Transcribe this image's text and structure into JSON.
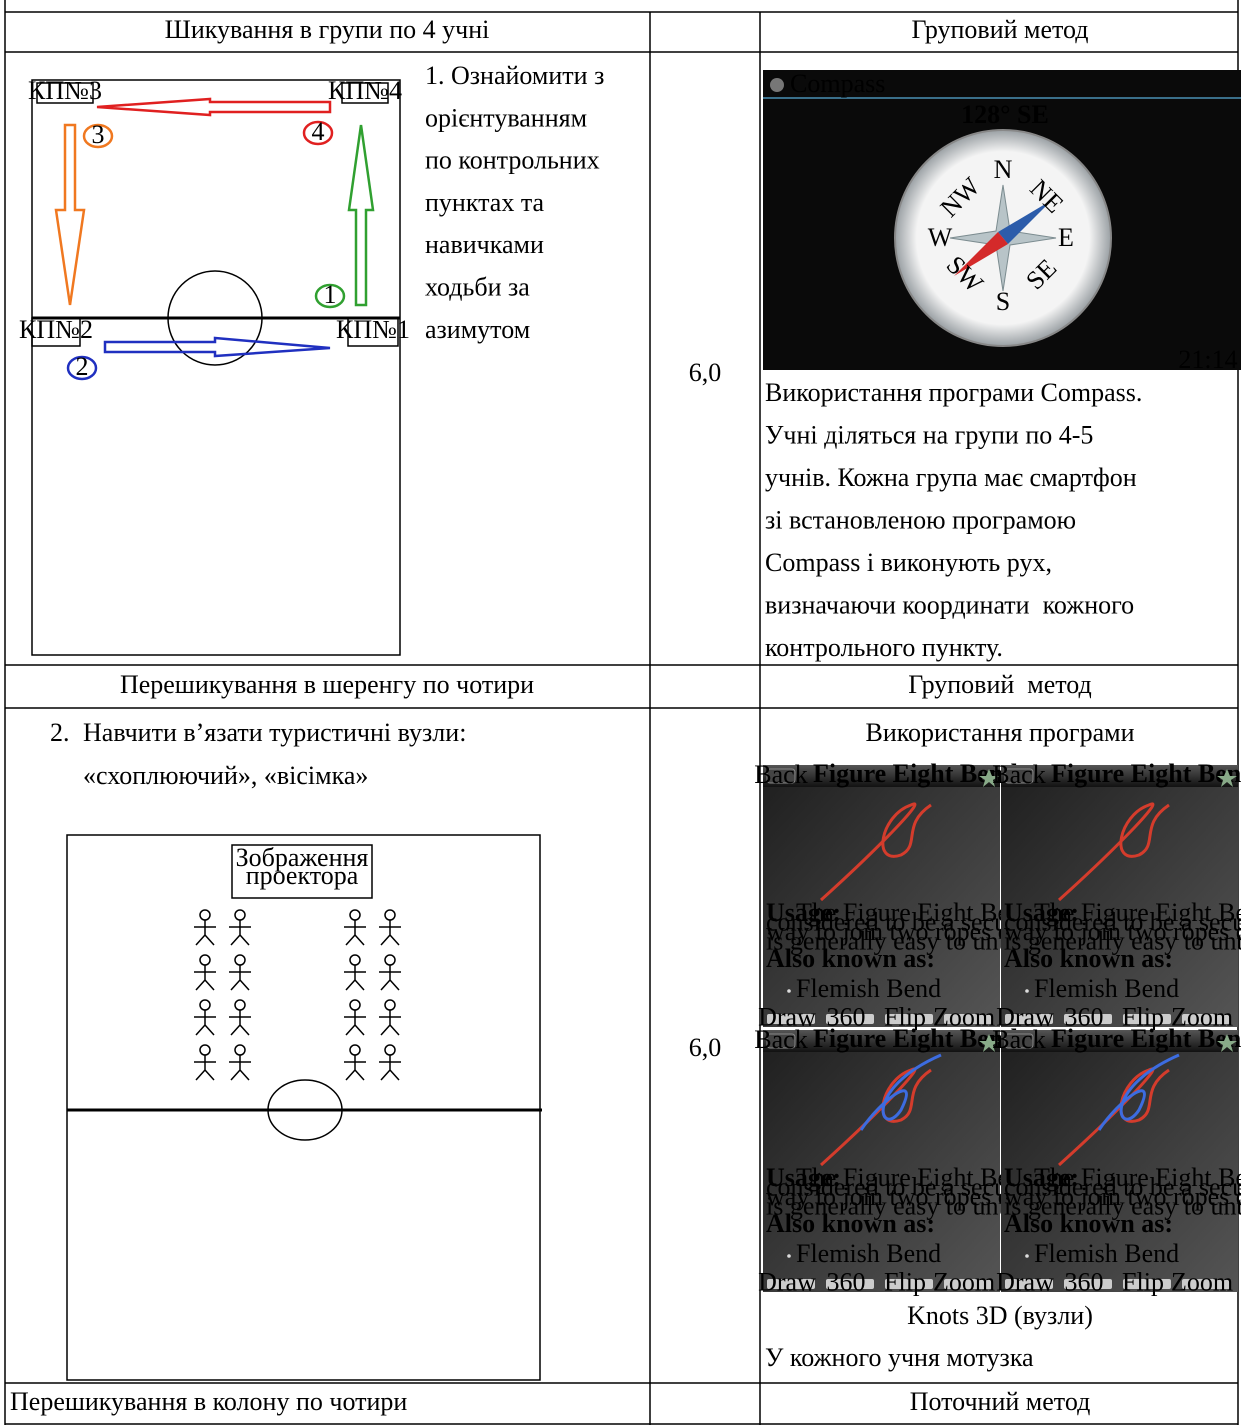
{
  "table": {
    "rows": [
      {
        "activity": "Шикування в групи по 4 учні",
        "method": "Груповий метод"
      },
      {
        "task_lines": [
          "1. Ознайомити з",
          "орієнтуванням",
          "по контрольних",
          "пунктах та",
          "навичками",
          "ходьби за",
          "азимутом"
        ],
        "scheme": {
          "checkpoints": [
            "КП№3",
            "КП№4",
            "КП№2",
            "КП№1"
          ],
          "markers": [
            "3",
            "4",
            "1",
            "2"
          ]
        },
        "time": "6,0",
        "screenshot": {
          "app_title": "Compass",
          "heading": "128° SE",
          "directions": [
            "N",
            "E",
            "S",
            "W",
            "NE",
            "SE",
            "SW",
            "NW"
          ],
          "clock": "21:14"
        },
        "description_lines": [
          "Використання програми Compass.",
          "Учні діляться на групи по 4-5",
          "учнів. Кожна група має смартфон",
          "зі встановленою програмою",
          "Compass і виконують рух,",
          "визначаючи координати  кожного",
          "контрольного пункту."
        ]
      },
      {
        "activity": "Перешикування в шеренгу по чотири",
        "method": "Груповий  метод"
      },
      {
        "task_number": "2.",
        "task_lines": [
          "Навчити в’язати туристичні вузли:",
          "«схоплюючий», «вісімка»"
        ],
        "scheme": {
          "label_lines": [
            "Зображення",
            "проектора"
          ]
        },
        "time": "6,0",
        "app_heading": "Використання програми",
        "screenshot": {
          "back": "Back",
          "title": "Figure Eight Bend",
          "usage_label": "Usage:",
          "usage_lines": [
            "The Figure Eight Bend is generally",
            "considered to be a secure bend that is a simple",
            "way to join two ropes of similar diameter and",
            "is generally easy to untie."
          ],
          "aka_label": "Also known as:",
          "aka_item": "Flemish Bend",
          "buttons": [
            "Draw",
            "360",
            "Flip",
            "Zoom"
          ]
        },
        "app_name": "Knots 3D (вузли)",
        "note": "У кожного учня мотузка"
      },
      {
        "activity": "Перешикування в колону по чотири",
        "method": "Поточний метод"
      }
    ]
  }
}
